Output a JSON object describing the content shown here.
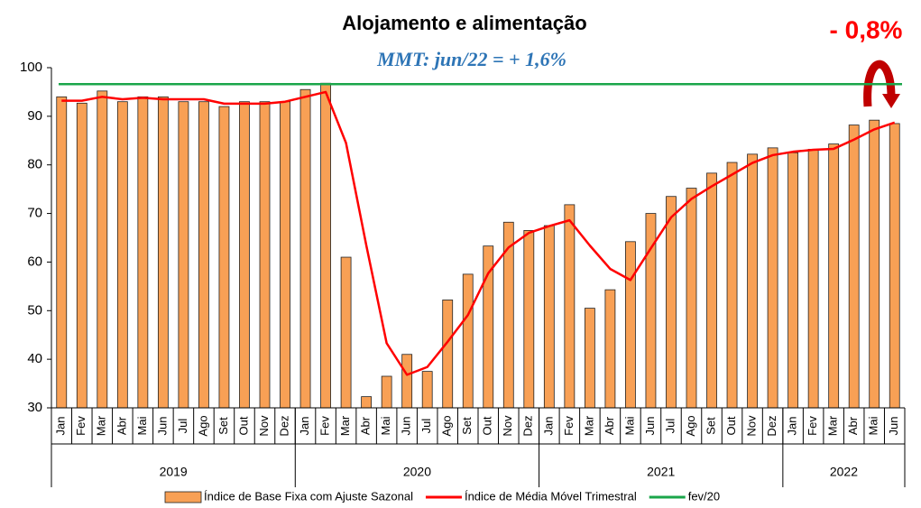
{
  "chart_data": {
    "type": "bar_line",
    "title": "Alojamento e alimentação",
    "subtitle": "MMT: jun/22 = + 1,6%",
    "annotation": "- 0,8%",
    "categories": [
      "Jan",
      "Fev",
      "Mar",
      "Abr",
      "Mai",
      "Jun",
      "Jul",
      "Ago",
      "Set",
      "Out",
      "Nov",
      "Dez",
      "Jan",
      "Fev",
      "Mar",
      "Abr",
      "Mai",
      "Jun",
      "Jul",
      "Ago",
      "Set",
      "Out",
      "Nov",
      "Dez",
      "Jan",
      "Fev",
      "Mar",
      "Abr",
      "Mai",
      "Jun",
      "Jul",
      "Ago",
      "Set",
      "Out",
      "Nov",
      "Dez",
      "Jan",
      "Fev",
      "Mar",
      "Abr",
      "Mai",
      "Jun"
    ],
    "years": [
      "2019",
      "2020",
      "2021",
      "2022"
    ],
    "series": [
      {
        "name": "Índice de Base Fixa com Ajuste Sazonal",
        "type": "bar",
        "color": "#f8a055",
        "values": [
          94,
          92.7,
          95.2,
          93,
          94,
          94,
          93,
          93,
          92,
          93,
          93,
          93,
          95.5,
          96.8,
          61,
          32.3,
          36.5,
          41,
          37.5,
          52.2,
          57.5,
          63.3,
          68.2,
          66.5,
          67.5,
          71.8,
          50.5,
          54.3,
          64.2,
          70,
          73.5,
          75.2,
          78.3,
          80.5,
          82.2,
          83.5,
          82.5,
          83.2,
          84.3,
          88.2,
          89.2,
          88.5
        ]
      },
      {
        "name": "Índice de Média Móvel Trimestral",
        "type": "line",
        "color": "#ff0000",
        "values": [
          93.2,
          93.2,
          94,
          93.5,
          93.8,
          93.5,
          93.5,
          93.5,
          92.6,
          92.6,
          92.6,
          93,
          94,
          95,
          84.5,
          63.4,
          43.3,
          36.8,
          38.4,
          43.6,
          49.1,
          57.7,
          63,
          66,
          67.4,
          68.6,
          63.4,
          58.6,
          56.3,
          62.8,
          69.2,
          73,
          75.6,
          78,
          80.4,
          82,
          82.7,
          83.1,
          83.3,
          85.2,
          87.3,
          88.7
        ]
      },
      {
        "name": "fev/20",
        "type": "hline",
        "color": "#1aa64a",
        "value": 96.6
      }
    ],
    "ylim": [
      30,
      100
    ],
    "yticks": [
      30,
      40,
      50,
      60,
      70,
      80,
      90,
      100
    ]
  }
}
